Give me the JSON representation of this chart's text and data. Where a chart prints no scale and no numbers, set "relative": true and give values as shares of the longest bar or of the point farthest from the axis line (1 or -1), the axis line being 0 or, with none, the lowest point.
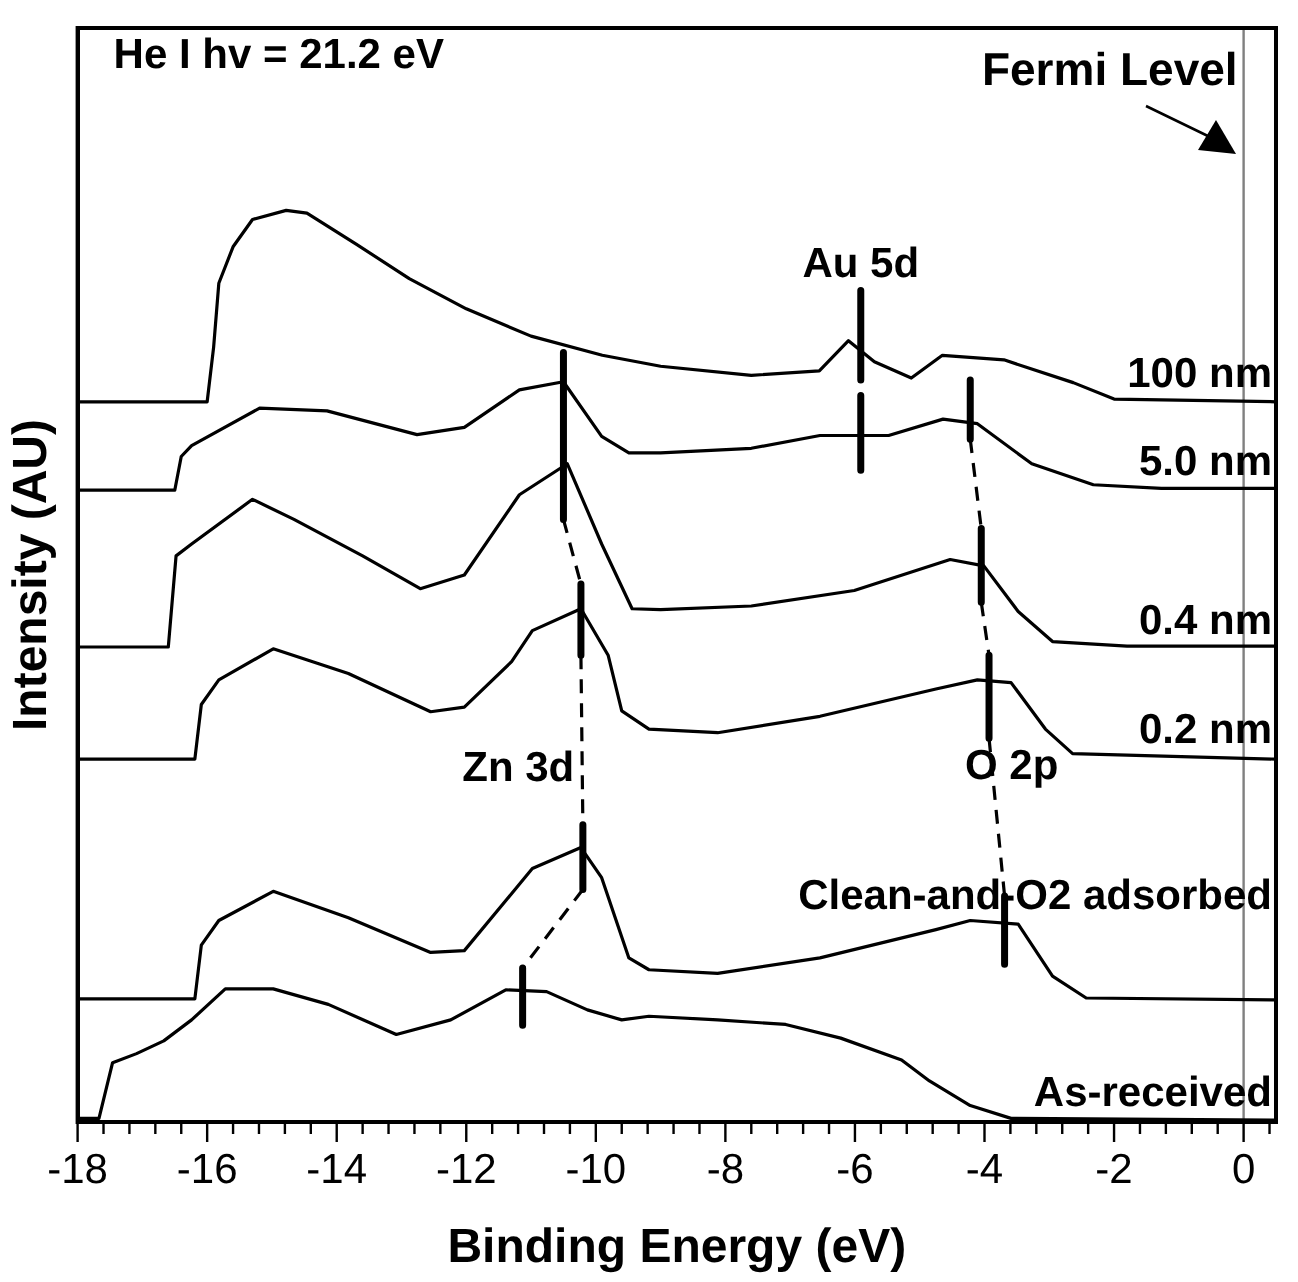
{
  "chart_data": {
    "type": "line",
    "relative": true,
    "xlabel": "Binding Energy (eV)",
    "ylabel": "Intensity (AU)",
    "xlim": [
      -18,
      0.5
    ],
    "xticks": [
      -18,
      {
        "value": -17.6,
        "label": null
      },
      {
        "value": -17.2,
        "label": null
      },
      {
        "value": -16.8,
        "label": null
      },
      {
        "value": -16.4,
        "label": null
      },
      -16,
      {
        "value": -15.6,
        "label": null
      },
      {
        "value": -15.2,
        "label": null
      },
      {
        "value": -14.8,
        "label": null
      },
      {
        "value": -14.4,
        "label": null
      },
      -14,
      {
        "value": -13.6,
        "label": null
      },
      {
        "value": -13.2,
        "label": null
      },
      {
        "value": -12.8,
        "label": null
      },
      {
        "value": -12.4,
        "label": null
      },
      -12,
      {
        "value": -11.6,
        "label": null
      },
      {
        "value": -11.2,
        "label": null
      },
      {
        "value": -10.8,
        "label": null
      },
      {
        "value": -10.4,
        "label": null
      },
      -10,
      {
        "value": -9.6,
        "label": null
      },
      {
        "value": -9.2,
        "label": null
      },
      {
        "value": -8.8,
        "label": null
      },
      {
        "value": -8.4,
        "label": null
      },
      -8,
      {
        "value": -7.6,
        "label": null
      },
      {
        "value": -7.2,
        "label": null
      },
      {
        "value": -6.8,
        "label": null
      },
      {
        "value": -6.4,
        "label": null
      },
      -6,
      {
        "value": -5.6,
        "label": null
      },
      {
        "value": -5.2,
        "label": null
      },
      {
        "value": -4.8,
        "label": null
      },
      {
        "value": -4.4,
        "label": null
      },
      -4,
      {
        "value": -3.6,
        "label": null
      },
      {
        "value": -3.2,
        "label": null
      },
      {
        "value": -2.8,
        "label": null
      },
      {
        "value": -2.4,
        "label": null
      },
      -2,
      {
        "value": -1.6,
        "label": null
      },
      {
        "value": -1.2,
        "label": null
      },
      {
        "value": -0.8,
        "label": null
      },
      {
        "value": -0.4,
        "label": null
      },
      0,
      {
        "value": 0.4,
        "label": null
      }
    ],
    "grid": false,
    "legend": false,
    "marker": "none",
    "line_style": "solid",
    "annotations": [
      "He I hv = 21.2 eV",
      {
        "text": "Au 5d",
        "x": -5.91,
        "y": 0.912
      },
      {
        "text": "Zn 3d",
        "x": -10.21,
        "y": 0.387
      },
      {
        "text": "O 2p",
        "x": -3.93,
        "y": 0.421
      }
    ],
    "ref_lines": [
      {
        "axis": "x",
        "value": 0,
        "label": "Fermi Level",
        "color": "#808080"
      }
    ],
    "series": [
      {
        "name": "100 nm",
        "color": "#000000",
        "x": [
          -18,
          -16.0,
          -15.9,
          -15.82,
          -15.6,
          -15.3,
          -14.78,
          -14.46,
          -13.7,
          -12.88,
          -12.0,
          -11.0,
          -9.9,
          -9.0,
          -7.6,
          -6.55,
          -6.1,
          -5.7,
          -5.13,
          -4.65,
          -3.7,
          -2.63,
          -2.0,
          0.5
        ],
        "values": [
          0.79,
          0.79,
          0.85,
          0.92,
          0.96,
          0.99,
          1.0,
          0.997,
          0.963,
          0.925,
          0.892,
          0.862,
          0.841,
          0.829,
          0.819,
          0.824,
          0.857,
          0.834,
          0.816,
          0.841,
          0.836,
          0.811,
          0.793,
          0.79
        ]
      },
      {
        "name": "5.0 nm",
        "color": "#000000",
        "x": [
          -18,
          -16.5,
          -16.4,
          -16.24,
          -15.19,
          -14.15,
          -12.76,
          -12.03,
          -11.18,
          -10.5,
          -9.91,
          -9.49,
          -9.0,
          -7.6,
          -6.54,
          -5.48,
          -4.64,
          -4.11,
          -3.27,
          -2.32,
          -1.27,
          0.5
        ],
        "values": [
          0.693,
          0.693,
          0.73,
          0.742,
          0.783,
          0.78,
          0.754,
          0.762,
          0.803,
          0.812,
          0.752,
          0.734,
          0.734,
          0.739,
          0.753,
          0.753,
          0.771,
          0.766,
          0.722,
          0.699,
          0.695,
          0.695
        ]
      },
      {
        "name": "0.4 nm",
        "color": "#000000",
        "x": [
          -18,
          -16.6,
          -16.48,
          -16.24,
          -15.3,
          -14.66,
          -13.6,
          -12.71,
          -12.03,
          -11.18,
          -10.44,
          -9.91,
          -9.44,
          -9.0,
          -7.6,
          -6.01,
          -4.53,
          -4.01,
          -3.48,
          -2.95,
          -1.8,
          0.5
        ],
        "values": [
          0.521,
          0.521,
          0.621,
          0.634,
          0.683,
          0.661,
          0.621,
          0.585,
          0.6,
          0.688,
          0.722,
          0.634,
          0.563,
          0.562,
          0.566,
          0.583,
          0.617,
          0.61,
          0.56,
          0.527,
          0.522,
          0.522
        ]
      },
      {
        "name": "0.2 nm",
        "color": "#000000",
        "x": [
          -18,
          -16.19,
          -16.09,
          -15.82,
          -14.98,
          -13.82,
          -12.55,
          -12.03,
          -11.3,
          -10.98,
          -10.23,
          -9.81,
          -9.6,
          -9.18,
          -8.12,
          -6.54,
          -4.75,
          -4.11,
          -3.59,
          -3.06,
          -2.64,
          0.5
        ],
        "values": [
          0.398,
          0.398,
          0.458,
          0.485,
          0.519,
          0.492,
          0.45,
          0.455,
          0.505,
          0.539,
          0.563,
          0.512,
          0.451,
          0.431,
          0.427,
          0.445,
          0.475,
          0.485,
          0.482,
          0.431,
          0.404,
          0.398
        ]
      },
      {
        "name": "Clean-and-O2 adsorbed",
        "color": "#000000",
        "x": [
          -18,
          -16.19,
          -16.09,
          -15.82,
          -14.98,
          -13.82,
          -12.55,
          -12.03,
          -10.98,
          -10.23,
          -9.91,
          -9.49,
          -9.18,
          -8.12,
          -6.54,
          -4.75,
          -4.22,
          -3.48,
          -2.95,
          -2.43,
          0.5
        ],
        "values": [
          0.135,
          0.135,
          0.194,
          0.221,
          0.253,
          0.224,
          0.186,
          0.188,
          0.278,
          0.301,
          0.268,
          0.18,
          0.167,
          0.163,
          0.18,
          0.211,
          0.221,
          0.217,
          0.16,
          0.136,
          0.134
        ]
      },
      {
        "name": "As-received",
        "color": "#000000",
        "x": [
          -18,
          -17.67,
          -17.46,
          -17.09,
          -16.67,
          -16.24,
          -15.72,
          -14.98,
          -14.13,
          -13.08,
          -12.24,
          -11.39,
          -10.76,
          -10.13,
          -9.6,
          -9.18,
          -8.12,
          -7.07,
          -6.22,
          -5.28,
          -4.85,
          -4.22,
          -3.59,
          0.5
        ],
        "values": [
          0.004,
          0.004,
          0.065,
          0.075,
          0.089,
          0.112,
          0.146,
          0.146,
          0.129,
          0.096,
          0.112,
          0.145,
          0.143,
          0.123,
          0.112,
          0.116,
          0.112,
          0.107,
          0.092,
          0.068,
          0.045,
          0.018,
          0.004,
          0.002
        ]
      },
      {
        "color": "#000000",
        "x": [
          -5.91,
          -5.91
        ],
        "values": [
          0.912,
          0.814
        ]
      },
      {
        "color": "#000000",
        "x": [
          -5.91,
          -5.91
        ],
        "values": [
          0.797,
          0.715
        ]
      },
      {
        "color": "#000000",
        "x": [
          -10.5,
          -10.5
        ],
        "values": [
          0.844,
          0.661
        ]
      },
      {
        "color": "#000000",
        "x": [
          -10.23,
          -10.23
        ],
        "values": [
          0.59,
          0.512
        ]
      },
      {
        "color": "#000000",
        "x": [
          -10.2,
          -10.2
        ],
        "values": [
          0.326,
          0.255
        ]
      },
      {
        "color": "#000000",
        "x": [
          -11.13,
          -11.13
        ],
        "values": [
          0.169,
          0.106
        ]
      },
      {
        "color": "#000000",
        "line_style": "dashed",
        "x": [
          -10.5,
          -10.23
        ],
        "values": [
          0.661,
          0.59
        ]
      },
      {
        "color": "#000000",
        "line_style": "dashed",
        "x": [
          -10.23,
          -10.21,
          -10.2
        ],
        "values": [
          0.512,
          0.387,
          0.326
        ]
      },
      {
        "color": "#000000",
        "line_style": "dashed",
        "x": [
          -10.2,
          -11.13
        ],
        "values": [
          0.255,
          0.169
        ]
      },
      {
        "color": "#000000",
        "x": [
          -4.22,
          -4.22
        ],
        "values": [
          0.814,
          0.749
        ]
      },
      {
        "color": "#000000",
        "x": [
          -4.05,
          -4.05
        ],
        "values": [
          0.651,
          0.57
        ]
      },
      {
        "color": "#000000",
        "x": [
          -3.93,
          -3.93
        ],
        "values": [
          0.512,
          0.421
        ]
      },
      {
        "color": "#000000",
        "x": [
          -3.69,
          -3.69
        ],
        "values": [
          0.248,
          0.173
        ]
      },
      {
        "color": "#000000",
        "line_style": "dashed",
        "x": [
          -4.22,
          -4.05
        ],
        "values": [
          0.749,
          0.651
        ]
      },
      {
        "color": "#000000",
        "line_style": "dashed",
        "x": [
          -4.05,
          -3.93
        ],
        "values": [
          0.57,
          0.512
        ]
      },
      {
        "color": "#000000",
        "line_style": "dashed",
        "x": [
          -3.93,
          -3.69
        ],
        "values": [
          0.421,
          0.248
        ]
      }
    ]
  }
}
